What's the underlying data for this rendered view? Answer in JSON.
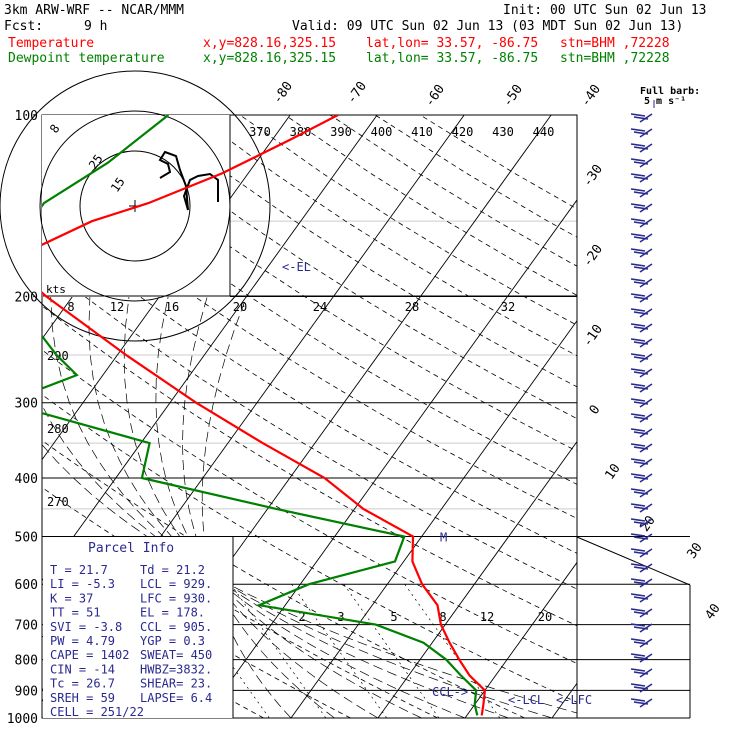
{
  "header": {
    "model": "3km ARW-WRF -- NCAR/MMM",
    "init": "Init: 00 UTC Sun 02 Jun 13",
    "fcst_label": "Fcst:",
    "fcst_value": "9 h",
    "valid": "Valid: 09 UTC Sun 02 Jun 13 (03 MDT Sun 02 Jun 13)",
    "temp_label": "Temperature",
    "dew_label": "Dewpoint temperature",
    "xy": "x,y=828.16,325.15",
    "latlon": "lat,lon= 33.57, -86.75",
    "stn": "stn=BHM ,72228"
  },
  "chart_data": {
    "type": "line",
    "pressure_levels": [
      100,
      200,
      300,
      400,
      500,
      600,
      700,
      800,
      900,
      1000
    ],
    "ylim": [
      100,
      1000
    ],
    "xlim": [
      -40,
      40
    ],
    "temp_isotherms": [
      -80,
      -70,
      -60,
      -50,
      -40,
      -30,
      -20,
      -10,
      0,
      10,
      20,
      30,
      40
    ],
    "theta_labels": [
      "370",
      "380",
      "390",
      "400",
      "410",
      "420",
      "430",
      "440"
    ],
    "theta_left_labels": [
      "290",
      "280",
      "270"
    ],
    "mixing_ratio_labels": [
      "2",
      "3",
      "5",
      "8",
      "12",
      "20"
    ],
    "series": [
      {
        "name": "Temperature",
        "color": "#ff0000",
        "points": [
          [
            100,
            -44.5
          ],
          [
            110,
            -48
          ],
          [
            125,
            -53
          ],
          [
            140,
            -59
          ],
          [
            150,
            -64
          ],
          [
            165,
            -68
          ],
          [
            180,
            -69
          ],
          [
            200,
            -63
          ],
          [
            250,
            -49
          ],
          [
            300,
            -37
          ],
          [
            350,
            -26
          ],
          [
            400,
            -16
          ],
          [
            450,
            -9
          ],
          [
            500,
            -1
          ],
          [
            550,
            1
          ],
          [
            600,
            4
          ],
          [
            650,
            7.5
          ],
          [
            700,
            9.5
          ],
          [
            750,
            12
          ],
          [
            800,
            14.5
          ],
          [
            850,
            17
          ],
          [
            900,
            20
          ],
          [
            950,
            21
          ],
          [
            990,
            21.7
          ]
        ]
      },
      {
        "name": "Dewpoint temperature",
        "color": "#008000",
        "points": [
          [
            100,
            -64
          ],
          [
            120,
            -67
          ],
          [
            140,
            -71
          ],
          [
            160,
            -71
          ],
          [
            180,
            -71
          ],
          [
            200,
            -67
          ],
          [
            250,
            -57
          ],
          [
            270,
            -53
          ],
          [
            300,
            -59
          ],
          [
            350,
            -39
          ],
          [
            400,
            -37
          ],
          [
            450,
            -19
          ],
          [
            500,
            -2
          ],
          [
            550,
            -1
          ],
          [
            600,
            -9
          ],
          [
            650,
            -13
          ],
          [
            700,
            2
          ],
          [
            750,
            9
          ],
          [
            800,
            13
          ],
          [
            850,
            16
          ],
          [
            900,
            19
          ],
          [
            950,
            20
          ],
          [
            990,
            21.2
          ]
        ]
      }
    ],
    "level_annotations": [
      {
        "label": "<-EL",
        "pressure": 178
      },
      {
        "label": "M",
        "pressure": 500
      },
      {
        "label": "CCL->",
        "pressure": 905
      },
      {
        "label": "<-LCL",
        "pressure": 929
      },
      {
        "label": "<-LFC",
        "pressure": 930
      }
    ],
    "hodograph": {
      "kts_label": "kts",
      "ring_labels": [
        "8",
        "25",
        "15"
      ],
      "speed_ticks": [
        "8",
        "12",
        "16",
        "20",
        "24",
        "28",
        "32"
      ]
    },
    "barb_key": {
      "title": "Full barb:",
      "value": "5 m s⁻¹"
    }
  },
  "parcel_info": {
    "title": "Parcel Info",
    "rows": [
      {
        "l": "T   =    21.7",
        "r": "Td =  21.2"
      },
      {
        "l": "LI  =    -5.3",
        "r": "LCL =  929."
      },
      {
        "l": "K   =      37",
        "r": "LFC =  930."
      },
      {
        "l": "TT  =      51",
        "r": "EL  =  178."
      },
      {
        "l": "SVI =    -3.8",
        "r": "CCL =  905."
      },
      {
        "l": "PW  =    4.79",
        "r": "YGP =   0.3"
      },
      {
        "l": "CAPE =   1402",
        "r": "SWEAT=  450"
      },
      {
        "l": "CIN  =    -14",
        "r": "HWBZ=3832."
      },
      {
        "l": "Tc  =    26.7",
        "r": "SHEAR=  23."
      },
      {
        "l": "SREH =     59",
        "r": "LAPSE=  6.4"
      },
      {
        "l": "CELL = 251/22",
        "r": ""
      }
    ]
  }
}
